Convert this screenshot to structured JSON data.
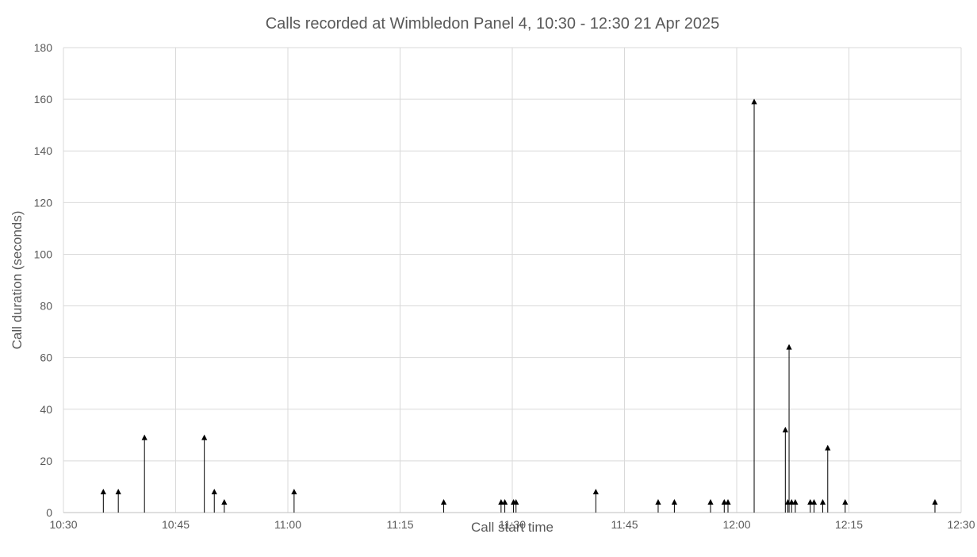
{
  "chart_data": {
    "type": "scatter",
    "title": "Calls recorded at Wimbledon Panel 4, 10:30 - 12:30 21 Apr 2025",
    "xlabel": "Call start time",
    "ylabel": "Call duration (seconds)",
    "x_range": [
      "10:30",
      "12:30"
    ],
    "x_ticks": [
      "10:30",
      "10:45",
      "11:00",
      "11:15",
      "11:30",
      "11:45",
      "12:00",
      "12:15",
      "12:30"
    ],
    "ylim": [
      0,
      180
    ],
    "y_ticks": [
      0,
      20,
      40,
      60,
      80,
      100,
      120,
      140,
      160,
      180
    ],
    "grid": true,
    "legend": "none",
    "marker": "triangle-up with drop line",
    "color": "#000000",
    "points": [
      {
        "x": "10:35:20",
        "y": 8
      },
      {
        "x": "10:37:20",
        "y": 8
      },
      {
        "x": "10:40:50",
        "y": 29
      },
      {
        "x": "10:48:50",
        "y": 29
      },
      {
        "x": "10:50:10",
        "y": 8
      },
      {
        "x": "10:51:30",
        "y": 4
      },
      {
        "x": "11:00:50",
        "y": 8
      },
      {
        "x": "11:20:50",
        "y": 4
      },
      {
        "x": "11:28:30",
        "y": 4
      },
      {
        "x": "11:29:00",
        "y": 4
      },
      {
        "x": "11:30:10",
        "y": 4
      },
      {
        "x": "11:30:30",
        "y": 4
      },
      {
        "x": "11:41:10",
        "y": 8
      },
      {
        "x": "11:49:30",
        "y": 4
      },
      {
        "x": "11:51:40",
        "y": 4
      },
      {
        "x": "11:56:30",
        "y": 4
      },
      {
        "x": "11:58:20",
        "y": 4
      },
      {
        "x": "11:58:50",
        "y": 4
      },
      {
        "x": "12:02:20",
        "y": 159
      },
      {
        "x": "12:06:30",
        "y": 32
      },
      {
        "x": "12:06:50",
        "y": 4
      },
      {
        "x": "12:07:00",
        "y": 64
      },
      {
        "x": "12:07:20",
        "y": 4
      },
      {
        "x": "12:07:50",
        "y": 4
      },
      {
        "x": "12:09:50",
        "y": 4
      },
      {
        "x": "12:10:20",
        "y": 4
      },
      {
        "x": "12:11:30",
        "y": 4
      },
      {
        "x": "12:12:10",
        "y": 25
      },
      {
        "x": "12:14:30",
        "y": 4
      },
      {
        "x": "12:26:30",
        "y": 4
      }
    ]
  }
}
